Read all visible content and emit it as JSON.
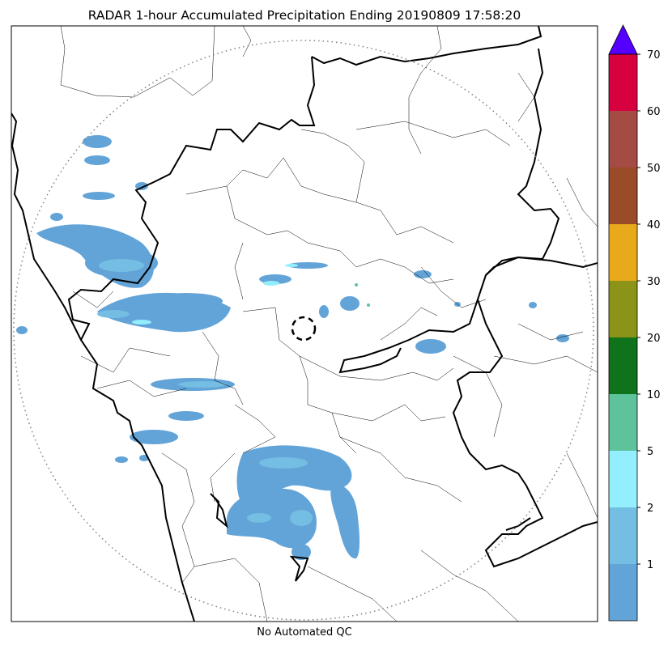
{
  "title": "RADAR 1-hour Accumulated Precipitation Ending 20190809 17:58:20",
  "caption": "No Automated QC",
  "colorbar": {
    "segments": [
      {
        "color": "#63a4d8"
      },
      {
        "color": "#74bde3"
      },
      {
        "color": "#93eefd"
      },
      {
        "color": "#5ec39b"
      },
      {
        "color": "#0f731b"
      },
      {
        "color": "#8b9418"
      },
      {
        "color": "#e8a91b"
      },
      {
        "color": "#994c27"
      },
      {
        "color": "#a44b44"
      },
      {
        "color": "#d80140"
      }
    ],
    "extend_color": "#5500ff",
    "ticks": [
      "1",
      "2",
      "5",
      "10",
      "20",
      "30",
      "40",
      "50",
      "60",
      "70"
    ]
  },
  "map": {
    "radar_range_ring": "dotted circle",
    "radar_site_marker": "dashed circle",
    "precip_colors": {
      "light": "#63a4d8",
      "moderate": "#74bde3",
      "heavy": "#93eefd",
      "heavier": "#5ec39b"
    }
  }
}
